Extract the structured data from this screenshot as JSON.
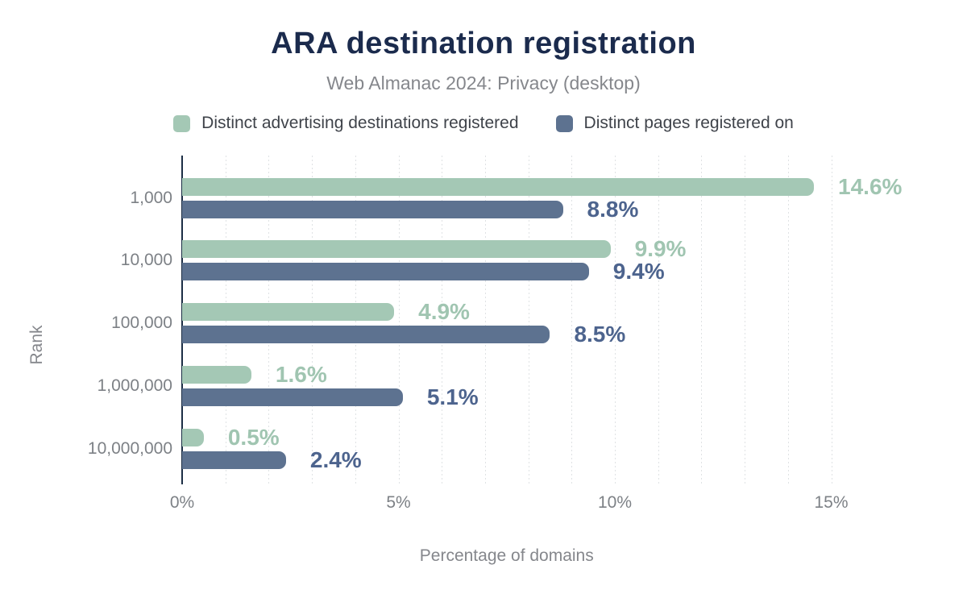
{
  "chart_data": {
    "type": "bar",
    "orientation": "horizontal",
    "title": "ARA destination registration",
    "subtitle": "Web Almanac 2024: Privacy (desktop)",
    "categories": [
      "1,000",
      "10,000",
      "100,000",
      "1,000,000",
      "10,000,000"
    ],
    "series": [
      {
        "key": "advertising-destinations",
        "name": "Distinct advertising destinations registered",
        "values": [
          14.6,
          9.9,
          4.9,
          1.6,
          0.5
        ],
        "labels": [
          "14.6%",
          "9.9%",
          "4.9%",
          "1.6%",
          "0.5%"
        ],
        "color": "#a4c8b5",
        "label_color": "#a0c5b1"
      },
      {
        "key": "pages-registered",
        "name": "Distinct pages registered on",
        "values": [
          8.8,
          9.4,
          8.5,
          5.1,
          2.4
        ],
        "labels": [
          "8.8%",
          "9.4%",
          "8.5%",
          "5.1%",
          "2.4%"
        ],
        "color": "#5d7290",
        "label_color": "#4d648e"
      }
    ],
    "xlabel": "Percentage of domains",
    "ylabel": "Rank",
    "xlim": [
      0,
      15
    ],
    "xticks": [
      {
        "value": 0,
        "label": "0%"
      },
      {
        "value": 5,
        "label": "5%"
      },
      {
        "value": 10,
        "label": "10%"
      },
      {
        "value": 15,
        "label": "15%"
      }
    ],
    "grid": {
      "minor_step_percent": 1,
      "style": "dotted",
      "color": "#dfe2e4"
    },
    "legend_position": "top",
    "colors": {
      "title": "#1b2b4d",
      "subtitle": "#85878c",
      "axis_text": "#7d8186",
      "legend_text": "#3f434a",
      "axis_line": "#1c2e45",
      "background": "#ffffff"
    }
  }
}
